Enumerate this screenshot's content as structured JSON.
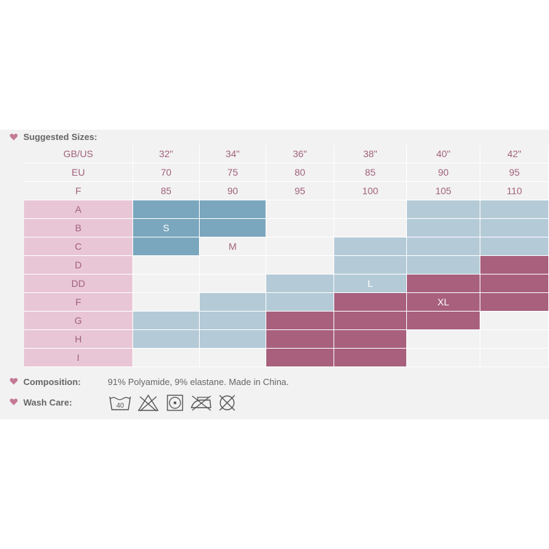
{
  "suggested_label": "Suggested Sizes:",
  "header_rows": [
    {
      "label": "GB/US",
      "values": [
        "32\"",
        "34\"",
        "36\"",
        "38\"",
        "40\"",
        "42\""
      ]
    },
    {
      "label": "EU",
      "values": [
        "70",
        "75",
        "80",
        "85",
        "90",
        "95"
      ]
    },
    {
      "label": "F",
      "values": [
        "85",
        "90",
        "95",
        "100",
        "105",
        "110"
      ]
    }
  ],
  "cup_rows": [
    {
      "cup": "A",
      "cells": [
        1,
        1,
        0,
        0,
        2,
        2
      ],
      "labels": [
        "",
        "",
        "",
        "",
        "",
        ""
      ]
    },
    {
      "cup": "B",
      "cells": [
        1,
        1,
        0,
        0,
        2,
        2
      ],
      "labels": [
        "S",
        "",
        "",
        "",
        "",
        ""
      ]
    },
    {
      "cup": "C",
      "cells": [
        1,
        0,
        0,
        2,
        2,
        2
      ],
      "labels": [
        "",
        "M",
        "",
        "",
        "",
        ""
      ]
    },
    {
      "cup": "D",
      "cells": [
        0,
        0,
        0,
        2,
        2,
        3
      ],
      "labels": [
        "",
        "",
        "",
        "",
        "",
        ""
      ]
    },
    {
      "cup": "DD",
      "cells": [
        0,
        0,
        2,
        2,
        3,
        3
      ],
      "labels": [
        "",
        "",
        "",
        "L",
        "",
        ""
      ]
    },
    {
      "cup": "F",
      "cells": [
        0,
        2,
        2,
        3,
        3,
        3
      ],
      "labels": [
        "",
        "",
        "",
        "",
        "XL",
        ""
      ]
    },
    {
      "cup": "G",
      "cells": [
        2,
        2,
        3,
        3,
        3,
        0
      ],
      "labels": [
        "",
        "",
        "",
        "",
        "",
        ""
      ]
    },
    {
      "cup": "H",
      "cells": [
        2,
        2,
        3,
        3,
        0,
        0
      ],
      "labels": [
        "",
        "",
        "",
        "",
        "",
        ""
      ]
    },
    {
      "cup": "I",
      "cells": [
        0,
        0,
        3,
        3,
        0,
        0
      ],
      "labels": [
        "",
        "",
        "",
        "",
        "",
        ""
      ]
    }
  ],
  "legend_colors": {
    "none": "#f2f2f2",
    "size_primary": "#7aa7bd",
    "size_secondary": "#b4cad7",
    "size_large": "#a8607d",
    "cup_bg": "#e8c6d6",
    "heart": "#c47a96"
  },
  "composition": {
    "label": "Composition:",
    "value": "91% Polyamide, 9% elastane. Made in China."
  },
  "wash_care": {
    "label": "Wash Care:",
    "wash_temp": "40",
    "icons": [
      "wash-40-icon",
      "do-not-bleach-icon",
      "tumble-dry-icon",
      "do-not-iron-icon",
      "do-not-dry-clean-icon"
    ]
  }
}
